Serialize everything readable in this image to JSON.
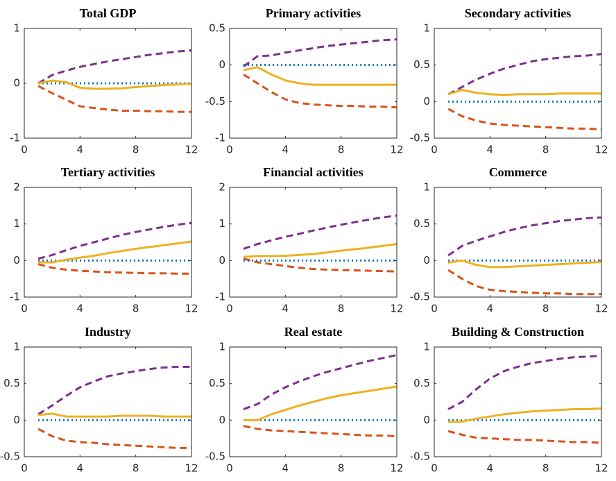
{
  "chart_data": [
    {
      "type": "line",
      "title": "Total GDP",
      "x": [
        1,
        2,
        3,
        4,
        5,
        6,
        7,
        8,
        9,
        10,
        11,
        12
      ],
      "xlim": [
        0,
        12
      ],
      "xticks": [
        0,
        4,
        8,
        12
      ],
      "ylim": [
        -1,
        1
      ],
      "yticks": [
        -1,
        0,
        1
      ],
      "series": [
        {
          "color": "#7e2f8e",
          "style": "dashed",
          "values": [
            0,
            0.15,
            0.23,
            0.3,
            0.35,
            0.4,
            0.44,
            0.48,
            0.52,
            0.55,
            0.58,
            0.6
          ]
        },
        {
          "color": "#d95319",
          "style": "dashed",
          "values": [
            -0.05,
            -0.18,
            -0.3,
            -0.42,
            -0.45,
            -0.48,
            -0.5,
            -0.5,
            -0.51,
            -0.51,
            -0.52,
            -0.52
          ]
        },
        {
          "color": "#0072bd",
          "style": "dotted",
          "values": [
            0,
            0,
            0,
            0,
            0,
            0,
            0,
            0,
            0,
            0,
            0,
            0
          ]
        },
        {
          "color": "#edb120",
          "style": "solid",
          "values": [
            0,
            0.05,
            0.02,
            -0.08,
            -0.1,
            -0.1,
            -0.09,
            -0.07,
            -0.05,
            -0.03,
            -0.02,
            -0.01
          ]
        }
      ]
    },
    {
      "type": "line",
      "title": "Primary activities",
      "x": [
        1,
        2,
        3,
        4,
        5,
        6,
        7,
        8,
        9,
        10,
        11,
        12
      ],
      "xlim": [
        0,
        12
      ],
      "xticks": [
        0,
        4,
        8,
        12
      ],
      "ylim": [
        -1,
        0.5
      ],
      "yticks": [
        -1,
        -0.5,
        0,
        0.5
      ],
      "series": [
        {
          "color": "#7e2f8e",
          "style": "dashed",
          "values": [
            -0.02,
            0.12,
            0.13,
            0.17,
            0.2,
            0.23,
            0.26,
            0.28,
            0.3,
            0.32,
            0.34,
            0.35
          ]
        },
        {
          "color": "#d95319",
          "style": "dashed",
          "values": [
            -0.13,
            -0.25,
            -0.37,
            -0.47,
            -0.52,
            -0.54,
            -0.55,
            -0.56,
            -0.56,
            -0.57,
            -0.57,
            -0.58
          ]
        },
        {
          "color": "#0072bd",
          "style": "dotted",
          "values": [
            0,
            0,
            0,
            0,
            0,
            0,
            0,
            0,
            0,
            0,
            0,
            0
          ]
        },
        {
          "color": "#edb120",
          "style": "solid",
          "values": [
            -0.07,
            -0.03,
            -0.13,
            -0.21,
            -0.25,
            -0.27,
            -0.27,
            -0.27,
            -0.27,
            -0.27,
            -0.27,
            -0.27
          ]
        }
      ]
    },
    {
      "type": "line",
      "title": "Secondary activities",
      "x": [
        1,
        2,
        3,
        4,
        5,
        6,
        7,
        8,
        9,
        10,
        11,
        12
      ],
      "xlim": [
        0,
        12
      ],
      "xticks": [
        0,
        4,
        8,
        12
      ],
      "ylim": [
        -0.5,
        1
      ],
      "yticks": [
        -0.5,
        0,
        0.5,
        1
      ],
      "series": [
        {
          "color": "#7e2f8e",
          "style": "dashed",
          "values": [
            0.1,
            0.2,
            0.3,
            0.38,
            0.45,
            0.5,
            0.55,
            0.58,
            0.6,
            0.62,
            0.63,
            0.65
          ]
        },
        {
          "color": "#d95319",
          "style": "dashed",
          "values": [
            -0.1,
            -0.2,
            -0.26,
            -0.3,
            -0.32,
            -0.33,
            -0.34,
            -0.35,
            -0.36,
            -0.37,
            -0.37,
            -0.38
          ]
        },
        {
          "color": "#0072bd",
          "style": "dotted",
          "values": [
            0,
            0,
            0,
            0,
            0,
            0,
            0,
            0,
            0,
            0,
            0,
            0
          ]
        },
        {
          "color": "#edb120",
          "style": "solid",
          "values": [
            0.1,
            0.16,
            0.12,
            0.1,
            0.09,
            0.1,
            0.1,
            0.1,
            0.11,
            0.11,
            0.11,
            0.11
          ]
        }
      ]
    },
    {
      "type": "line",
      "title": "Tertiary activities",
      "x": [
        1,
        2,
        3,
        4,
        5,
        6,
        7,
        8,
        9,
        10,
        11,
        12
      ],
      "xlim": [
        0,
        12
      ],
      "xticks": [
        0,
        4,
        8,
        12
      ],
      "ylim": [
        -1,
        2
      ],
      "yticks": [
        -1,
        0,
        1,
        2
      ],
      "series": [
        {
          "color": "#7e2f8e",
          "style": "dashed",
          "values": [
            0.05,
            0.15,
            0.28,
            0.4,
            0.5,
            0.6,
            0.7,
            0.78,
            0.85,
            0.92,
            0.98,
            1.03
          ]
        },
        {
          "color": "#d95319",
          "style": "dashed",
          "values": [
            -0.1,
            -0.2,
            -0.25,
            -0.28,
            -0.3,
            -0.32,
            -0.33,
            -0.34,
            -0.35,
            -0.35,
            -0.36,
            -0.36
          ]
        },
        {
          "color": "#0072bd",
          "style": "dotted",
          "values": [
            0,
            0,
            0,
            0,
            0,
            0,
            0,
            0,
            0,
            0,
            0,
            0
          ]
        },
        {
          "color": "#edb120",
          "style": "solid",
          "values": [
            -0.05,
            -0.05,
            0.02,
            0.08,
            0.13,
            0.2,
            0.26,
            0.32,
            0.37,
            0.42,
            0.47,
            0.52
          ]
        }
      ]
    },
    {
      "type": "line",
      "title": "Financial activities",
      "x": [
        1,
        2,
        3,
        4,
        5,
        6,
        7,
        8,
        9,
        10,
        11,
        12
      ],
      "xlim": [
        0,
        12
      ],
      "xticks": [
        0,
        4,
        8,
        12
      ],
      "ylim": [
        -1,
        2
      ],
      "yticks": [
        -1,
        0,
        1,
        2
      ],
      "series": [
        {
          "color": "#7e2f8e",
          "style": "dashed",
          "values": [
            0.32,
            0.45,
            0.55,
            0.65,
            0.73,
            0.82,
            0.9,
            0.98,
            1.05,
            1.12,
            1.18,
            1.23
          ]
        },
        {
          "color": "#d95319",
          "style": "dashed",
          "values": [
            0.05,
            -0.05,
            -0.1,
            -0.15,
            -0.2,
            -0.23,
            -0.25,
            -0.26,
            -0.27,
            -0.28,
            -0.29,
            -0.3
          ]
        },
        {
          "color": "#0072bd",
          "style": "dotted",
          "values": [
            0,
            0,
            0,
            0,
            0,
            0,
            0,
            0,
            0,
            0,
            0,
            0
          ]
        },
        {
          "color": "#edb120",
          "style": "solid",
          "values": [
            0.1,
            0.12,
            0.12,
            0.13,
            0.15,
            0.18,
            0.22,
            0.27,
            0.31,
            0.35,
            0.4,
            0.45
          ]
        }
      ]
    },
    {
      "type": "line",
      "title": "Commerce",
      "x": [
        1,
        2,
        3,
        4,
        5,
        6,
        7,
        8,
        9,
        10,
        11,
        12
      ],
      "xlim": [
        0,
        12
      ],
      "xticks": [
        0,
        4,
        8,
        12
      ],
      "ylim": [
        -0.5,
        1
      ],
      "yticks": [
        -0.5,
        0,
        0.5,
        1
      ],
      "series": [
        {
          "color": "#7e2f8e",
          "style": "dashed",
          "values": [
            0.07,
            0.2,
            0.27,
            0.33,
            0.39,
            0.44,
            0.48,
            0.51,
            0.54,
            0.56,
            0.58,
            0.59
          ]
        },
        {
          "color": "#d95319",
          "style": "dashed",
          "values": [
            -0.13,
            -0.25,
            -0.35,
            -0.4,
            -0.42,
            -0.43,
            -0.44,
            -0.45,
            -0.45,
            -0.46,
            -0.46,
            -0.46
          ]
        },
        {
          "color": "#0072bd",
          "style": "dotted",
          "values": [
            0,
            0,
            0,
            0,
            0,
            0,
            0,
            0,
            0,
            0,
            0,
            0
          ]
        },
        {
          "color": "#edb120",
          "style": "solid",
          "values": [
            -0.03,
            0,
            -0.06,
            -0.09,
            -0.09,
            -0.08,
            -0.07,
            -0.06,
            -0.05,
            -0.04,
            -0.03,
            -0.02
          ]
        }
      ]
    },
    {
      "type": "line",
      "title": "Industry",
      "x": [
        1,
        2,
        3,
        4,
        5,
        6,
        7,
        8,
        9,
        10,
        11,
        12
      ],
      "xlim": [
        0,
        12
      ],
      "xticks": [
        0,
        4,
        8,
        12
      ],
      "ylim": [
        -0.5,
        1
      ],
      "yticks": [
        -0.5,
        0,
        0.5,
        1
      ],
      "series": [
        {
          "color": "#7e2f8e",
          "style": "dashed",
          "values": [
            0.08,
            0.2,
            0.33,
            0.45,
            0.53,
            0.6,
            0.64,
            0.67,
            0.7,
            0.72,
            0.73,
            0.73
          ]
        },
        {
          "color": "#d95319",
          "style": "dashed",
          "values": [
            -0.12,
            -0.22,
            -0.28,
            -0.3,
            -0.31,
            -0.33,
            -0.34,
            -0.35,
            -0.36,
            -0.37,
            -0.38,
            -0.38
          ]
        },
        {
          "color": "#0072bd",
          "style": "dotted",
          "values": [
            0,
            0,
            0,
            0,
            0,
            0,
            0,
            0,
            0,
            0,
            0,
            0
          ]
        },
        {
          "color": "#edb120",
          "style": "solid",
          "values": [
            0.07,
            0.09,
            0.05,
            0.05,
            0.05,
            0.05,
            0.06,
            0.06,
            0.06,
            0.05,
            0.05,
            0.05
          ]
        }
      ]
    },
    {
      "type": "line",
      "title": "Real estate",
      "x": [
        1,
        2,
        3,
        4,
        5,
        6,
        7,
        8,
        9,
        10,
        11,
        12
      ],
      "xlim": [
        0,
        12
      ],
      "xticks": [
        0,
        4,
        8,
        12
      ],
      "ylim": [
        -0.5,
        1
      ],
      "yticks": [
        -0.5,
        0,
        0.5,
        1
      ],
      "series": [
        {
          "color": "#7e2f8e",
          "style": "dashed",
          "values": [
            0.15,
            0.22,
            0.35,
            0.45,
            0.53,
            0.6,
            0.66,
            0.71,
            0.76,
            0.81,
            0.85,
            0.89
          ]
        },
        {
          "color": "#d95319",
          "style": "dashed",
          "values": [
            -0.08,
            -0.12,
            -0.14,
            -0.15,
            -0.16,
            -0.17,
            -0.18,
            -0.19,
            -0.2,
            -0.21,
            -0.21,
            -0.22
          ]
        },
        {
          "color": "#0072bd",
          "style": "dotted",
          "values": [
            0,
            0,
            0,
            0,
            0,
            0,
            0,
            0,
            0,
            0,
            0,
            0
          ]
        },
        {
          "color": "#edb120",
          "style": "solid",
          "values": [
            0,
            0,
            0.08,
            0.14,
            0.2,
            0.25,
            0.3,
            0.34,
            0.37,
            0.4,
            0.43,
            0.46
          ]
        }
      ]
    },
    {
      "type": "line",
      "title": "Building & Construction",
      "x": [
        1,
        2,
        3,
        4,
        5,
        6,
        7,
        8,
        9,
        10,
        11,
        12
      ],
      "xlim": [
        0,
        12
      ],
      "xticks": [
        0,
        4,
        8,
        12
      ],
      "ylim": [
        -0.5,
        1
      ],
      "yticks": [
        -0.5,
        0,
        0.5,
        1
      ],
      "series": [
        {
          "color": "#7e2f8e",
          "style": "dashed",
          "values": [
            0.15,
            0.25,
            0.42,
            0.57,
            0.67,
            0.73,
            0.78,
            0.81,
            0.84,
            0.86,
            0.87,
            0.88
          ]
        },
        {
          "color": "#d95319",
          "style": "dashed",
          "values": [
            -0.15,
            -0.2,
            -0.24,
            -0.25,
            -0.26,
            -0.27,
            -0.27,
            -0.28,
            -0.29,
            -0.3,
            -0.3,
            -0.31
          ]
        },
        {
          "color": "#0072bd",
          "style": "dotted",
          "values": [
            0,
            0,
            0,
            0,
            0,
            0,
            0,
            0,
            0,
            0,
            0,
            0
          ]
        },
        {
          "color": "#edb120",
          "style": "solid",
          "values": [
            -0.02,
            -0.02,
            0.02,
            0.05,
            0.08,
            0.1,
            0.12,
            0.13,
            0.14,
            0.15,
            0.15,
            0.16
          ]
        }
      ]
    }
  ]
}
